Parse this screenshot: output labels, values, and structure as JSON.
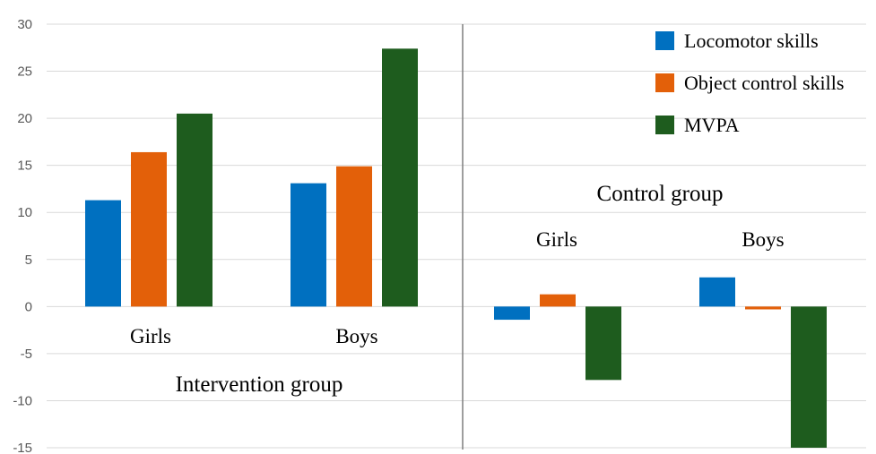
{
  "chart_data": {
    "type": "bar",
    "ylim": [
      -15,
      30
    ],
    "yticks": [
      -15,
      -10,
      -5,
      0,
      5,
      10,
      15,
      20,
      25,
      30
    ],
    "grid": true,
    "legend_position": "top-right",
    "groups": [
      {
        "label": "Intervention group",
        "categories": [
          "Girls",
          "Boys"
        ],
        "series": [
          {
            "name": "Locomotor skills",
            "values": [
              11.3,
              13.1
            ]
          },
          {
            "name": "Object control skills",
            "values": [
              16.4,
              14.9
            ]
          },
          {
            "name": "MVPA",
            "values": [
              20.5,
              27.4
            ]
          }
        ]
      },
      {
        "label": "Control group",
        "categories": [
          "Girls",
          "Boys"
        ],
        "series": [
          {
            "name": "Locomotor skills",
            "values": [
              -1.4,
              3.1
            ]
          },
          {
            "name": "Object control skills",
            "values": [
              1.3,
              -0.3
            ]
          },
          {
            "name": "MVPA",
            "values": [
              -7.8,
              -15.0
            ]
          }
        ]
      }
    ],
    "legend": [
      {
        "name": "Locomotor skills",
        "color": "#0070C0"
      },
      {
        "name": "Object control skills",
        "color": "#E36009"
      },
      {
        "name": "MVPA",
        "color": "#1E5C1E"
      }
    ]
  }
}
